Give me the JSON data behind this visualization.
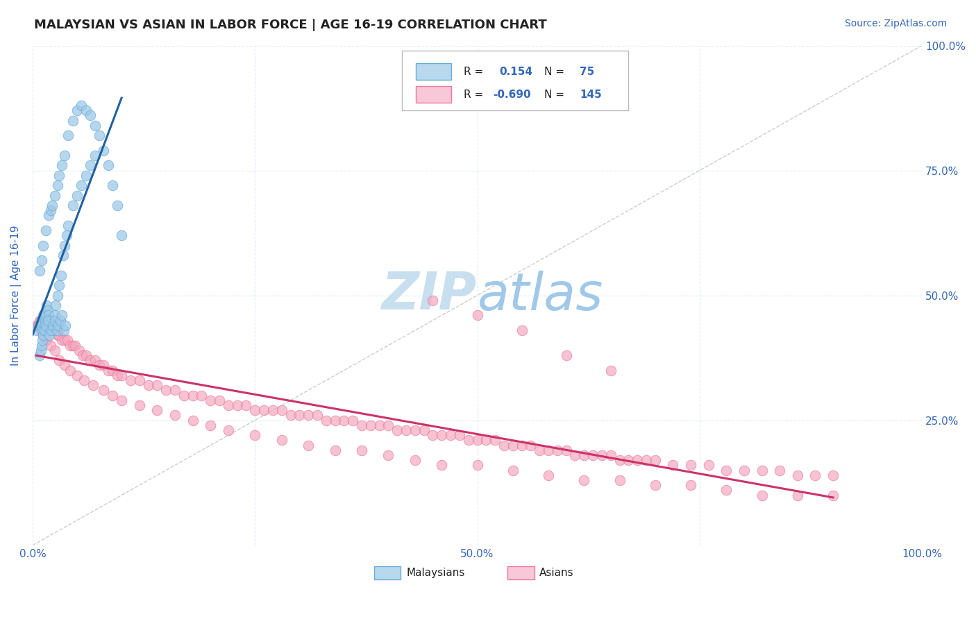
{
  "title": "MALAYSIAN VS ASIAN IN LABOR FORCE | AGE 16-19 CORRELATION CHART",
  "source": "Source: ZipAtlas.com",
  "ylabel": "In Labor Force | Age 16-19",
  "xlim": [
    0.0,
    1.0
  ],
  "ylim": [
    0.0,
    1.0
  ],
  "malaysian_color": "#9ec9e8",
  "asian_color": "#f4a8bf",
  "malaysian_edge": "#6aadd5",
  "asian_edge": "#e87a9f",
  "trend_malaysian_color": "#2060a0",
  "trend_asian_color": "#cc3366",
  "diagonal_color": "#aaaaaa",
  "R_malaysian": 0.154,
  "N_malaysian": 75,
  "R_asian": -0.69,
  "N_asian": 145,
  "legend_box_color_malaysian": "#b8d8ee",
  "legend_box_color_asian": "#f9c8d8",
  "watermark_color": "#cce0f0",
  "background_color": "#ffffff",
  "grid_color": "#ddeaf5",
  "title_color": "#222222",
  "tick_label_color": "#3366bb",
  "malaysian_x": [
    0.005,
    0.007,
    0.009,
    0.01,
    0.011,
    0.012,
    0.013,
    0.014,
    0.015,
    0.016,
    0.017,
    0.018,
    0.019,
    0.02,
    0.021,
    0.022,
    0.023,
    0.025,
    0.026,
    0.028,
    0.03,
    0.032,
    0.034,
    0.036,
    0.038,
    0.04,
    0.045,
    0.05,
    0.055,
    0.06,
    0.065,
    0.07,
    0.008,
    0.009,
    0.01,
    0.011,
    0.012,
    0.013,
    0.015,
    0.017,
    0.019,
    0.021,
    0.023,
    0.025,
    0.027,
    0.029,
    0.031,
    0.033,
    0.035,
    0.037,
    0.008,
    0.01,
    0.012,
    0.015,
    0.018,
    0.02,
    0.022,
    0.025,
    0.028,
    0.03,
    0.033,
    0.036,
    0.04,
    0.045,
    0.05,
    0.055,
    0.06,
    0.065,
    0.07,
    0.075,
    0.08,
    0.085,
    0.09,
    0.095,
    0.1
  ],
  "malaysian_y": [
    0.43,
    0.44,
    0.45,
    0.44,
    0.43,
    0.46,
    0.44,
    0.45,
    0.46,
    0.48,
    0.47,
    0.46,
    0.45,
    0.44,
    0.43,
    0.45,
    0.44,
    0.46,
    0.48,
    0.5,
    0.52,
    0.54,
    0.58,
    0.6,
    0.62,
    0.64,
    0.68,
    0.7,
    0.72,
    0.74,
    0.76,
    0.78,
    0.38,
    0.39,
    0.4,
    0.41,
    0.42,
    0.43,
    0.44,
    0.45,
    0.42,
    0.43,
    0.44,
    0.45,
    0.43,
    0.44,
    0.45,
    0.46,
    0.43,
    0.44,
    0.55,
    0.57,
    0.6,
    0.63,
    0.66,
    0.67,
    0.68,
    0.7,
    0.72,
    0.74,
    0.76,
    0.78,
    0.82,
    0.85,
    0.87,
    0.88,
    0.87,
    0.86,
    0.84,
    0.82,
    0.79,
    0.76,
    0.72,
    0.68,
    0.62
  ],
  "asian_x": [
    0.004,
    0.006,
    0.008,
    0.01,
    0.012,
    0.014,
    0.016,
    0.018,
    0.02,
    0.022,
    0.025,
    0.028,
    0.03,
    0.033,
    0.036,
    0.039,
    0.042,
    0.045,
    0.048,
    0.052,
    0.056,
    0.06,
    0.065,
    0.07,
    0.075,
    0.08,
    0.085,
    0.09,
    0.095,
    0.1,
    0.11,
    0.12,
    0.13,
    0.14,
    0.15,
    0.16,
    0.17,
    0.18,
    0.19,
    0.2,
    0.21,
    0.22,
    0.23,
    0.24,
    0.25,
    0.26,
    0.27,
    0.28,
    0.29,
    0.3,
    0.31,
    0.32,
    0.33,
    0.34,
    0.35,
    0.36,
    0.37,
    0.38,
    0.39,
    0.4,
    0.41,
    0.42,
    0.43,
    0.44,
    0.45,
    0.46,
    0.47,
    0.48,
    0.49,
    0.5,
    0.51,
    0.52,
    0.53,
    0.54,
    0.55,
    0.56,
    0.57,
    0.58,
    0.59,
    0.6,
    0.61,
    0.62,
    0.63,
    0.64,
    0.65,
    0.66,
    0.67,
    0.68,
    0.69,
    0.7,
    0.72,
    0.74,
    0.76,
    0.78,
    0.8,
    0.82,
    0.84,
    0.86,
    0.88,
    0.9,
    0.006,
    0.009,
    0.012,
    0.016,
    0.02,
    0.025,
    0.03,
    0.036,
    0.042,
    0.05,
    0.058,
    0.068,
    0.08,
    0.09,
    0.1,
    0.12,
    0.14,
    0.16,
    0.18,
    0.2,
    0.22,
    0.25,
    0.28,
    0.31,
    0.34,
    0.37,
    0.4,
    0.43,
    0.46,
    0.5,
    0.54,
    0.58,
    0.62,
    0.66,
    0.7,
    0.74,
    0.78,
    0.82,
    0.86,
    0.9,
    0.45,
    0.5,
    0.55,
    0.6,
    0.65
  ],
  "asian_y": [
    0.44,
    0.44,
    0.45,
    0.44,
    0.44,
    0.43,
    0.44,
    0.43,
    0.44,
    0.43,
    0.43,
    0.42,
    0.42,
    0.41,
    0.41,
    0.41,
    0.4,
    0.4,
    0.4,
    0.39,
    0.38,
    0.38,
    0.37,
    0.37,
    0.36,
    0.36,
    0.35,
    0.35,
    0.34,
    0.34,
    0.33,
    0.33,
    0.32,
    0.32,
    0.31,
    0.31,
    0.3,
    0.3,
    0.3,
    0.29,
    0.29,
    0.28,
    0.28,
    0.28,
    0.27,
    0.27,
    0.27,
    0.27,
    0.26,
    0.26,
    0.26,
    0.26,
    0.25,
    0.25,
    0.25,
    0.25,
    0.24,
    0.24,
    0.24,
    0.24,
    0.23,
    0.23,
    0.23,
    0.23,
    0.22,
    0.22,
    0.22,
    0.22,
    0.21,
    0.21,
    0.21,
    0.21,
    0.2,
    0.2,
    0.2,
    0.2,
    0.19,
    0.19,
    0.19,
    0.19,
    0.18,
    0.18,
    0.18,
    0.18,
    0.18,
    0.17,
    0.17,
    0.17,
    0.17,
    0.17,
    0.16,
    0.16,
    0.16,
    0.15,
    0.15,
    0.15,
    0.15,
    0.14,
    0.14,
    0.14,
    0.44,
    0.43,
    0.42,
    0.41,
    0.4,
    0.39,
    0.37,
    0.36,
    0.35,
    0.34,
    0.33,
    0.32,
    0.31,
    0.3,
    0.29,
    0.28,
    0.27,
    0.26,
    0.25,
    0.24,
    0.23,
    0.22,
    0.21,
    0.2,
    0.19,
    0.19,
    0.18,
    0.17,
    0.16,
    0.16,
    0.15,
    0.14,
    0.13,
    0.13,
    0.12,
    0.12,
    0.11,
    0.1,
    0.1,
    0.1,
    0.49,
    0.46,
    0.43,
    0.38,
    0.35
  ]
}
